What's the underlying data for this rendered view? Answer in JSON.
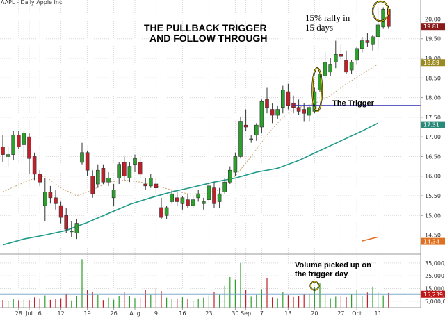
{
  "title": "AAPL - Daily  Apple Inc",
  "annotations": {
    "headline_1": "THE PULLBACK TRIGGER",
    "headline_2": "AND FOLLOW THROUGH",
    "rally_1": "15% rally in",
    "rally_2": "15 days",
    "trigger": "The Trigger",
    "volume_1": "Volume picked up on",
    "volume_2": "the trigger day"
  },
  "colors": {
    "up": "#2ca02c",
    "down": "#c0202a",
    "sma_long": "#1e9a8a",
    "sma_short": "#c8a878",
    "trigger_line": "#2b2bb0",
    "volume_avg": "#6f9ec0",
    "badge_price": "#8b1a1a",
    "badge_sma_short": "#9a8a20",
    "badge_sma_long": "#2a8a7a",
    "badge_extra": "#e07020",
    "badge_volume": "#c01818",
    "annotation_circle": "#e8d000"
  },
  "chart_data": {
    "type": "candlestick",
    "title": "AAPL - Daily  Apple Inc",
    "price_axis": {
      "ylim": [
        14.05,
        20.45
      ],
      "ticks": [
        14.5,
        15.0,
        15.5,
        16.0,
        16.5,
        17.0,
        17.5,
        18.0,
        18.5,
        19.0,
        19.5,
        20.0
      ],
      "tick_labels": [
        "14.50",
        "15.00",
        "15.50",
        "16.00",
        "16.50",
        "17.00",
        "17.50",
        "18.00",
        "18.50",
        "19.00",
        "19.50",
        "20.00"
      ]
    },
    "volume_axis": {
      "ylim": [
        0,
        42000000
      ],
      "ticks": [
        5000000,
        15000000,
        25000000,
        35000000
      ],
      "tick_labels": [
        "5,000,0",
        "15,000,0",
        "25,000,0",
        "35,000,"
      ]
    },
    "x_ticks": [
      {
        "index": 3,
        "label": "28"
      },
      {
        "index": 5,
        "label": "Jul"
      },
      {
        "index": 7,
        "label": "6"
      },
      {
        "index": 11,
        "label": "12"
      },
      {
        "index": 16,
        "label": "19"
      },
      {
        "index": 21,
        "label": "26"
      },
      {
        "index": 25,
        "label": "Aug"
      },
      {
        "index": 29,
        "label": "9"
      },
      {
        "index": 34,
        "label": "16"
      },
      {
        "index": 39,
        "label": "23"
      },
      {
        "index": 44,
        "label": "30"
      },
      {
        "index": 46,
        "label": "Sep"
      },
      {
        "index": 49,
        "label": "7"
      },
      {
        "index": 54,
        "label": "13"
      },
      {
        "index": 59,
        "label": "20"
      },
      {
        "index": 64,
        "label": "27"
      },
      {
        "index": 67,
        "label": "Oct"
      },
      {
        "index": 71,
        "label": "11"
      }
    ],
    "candles": [
      [
        16.75,
        17.05,
        16.35,
        16.55
      ],
      [
        16.5,
        16.75,
        16.25,
        16.55
      ],
      [
        16.55,
        17.15,
        16.4,
        17.05
      ],
      [
        17.05,
        17.15,
        16.7,
        16.75
      ],
      [
        16.8,
        17.15,
        16.5,
        17.1
      ],
      [
        17.0,
        17.1,
        16.05,
        16.45
      ],
      [
        16.5,
        16.6,
        15.9,
        16.05
      ],
      [
        16.05,
        16.15,
        15.75,
        15.85
      ],
      [
        15.25,
        15.95,
        14.85,
        15.6
      ],
      [
        15.6,
        15.75,
        15.3,
        15.45
      ],
      [
        15.45,
        15.65,
        15.15,
        15.3
      ],
      [
        15.25,
        15.35,
        14.8,
        14.95
      ],
      [
        15.0,
        15.2,
        14.55,
        14.65
      ],
      [
        14.6,
        14.85,
        14.45,
        14.6
      ],
      [
        14.55,
        14.9,
        14.4,
        14.8
      ],
      [
        16.35,
        16.85,
        16.3,
        16.6
      ],
      [
        16.6,
        16.65,
        16.0,
        16.15
      ],
      [
        16.0,
        16.15,
        15.45,
        15.55
      ],
      [
        15.8,
        16.3,
        15.7,
        16.15
      ],
      [
        16.2,
        16.3,
        15.8,
        15.85
      ],
      [
        15.85,
        16.1,
        15.75,
        15.95
      ],
      [
        15.45,
        15.8,
        15.25,
        15.65
      ],
      [
        15.95,
        16.35,
        15.8,
        16.3
      ],
      [
        16.35,
        16.5,
        15.9,
        16.0
      ],
      [
        15.95,
        16.35,
        15.85,
        16.25
      ],
      [
        16.3,
        16.55,
        16.1,
        16.45
      ],
      [
        16.35,
        16.5,
        15.95,
        16.05
      ],
      [
        15.8,
        15.95,
        15.65,
        15.75
      ],
      [
        15.75,
        16.05,
        15.7,
        15.95
      ],
      [
        15.8,
        15.95,
        15.55,
        15.7
      ],
      [
        15.2,
        15.45,
        14.9,
        14.95
      ],
      [
        15.0,
        15.25,
        14.9,
        15.2
      ],
      [
        15.35,
        15.65,
        15.3,
        15.55
      ],
      [
        15.45,
        15.6,
        15.25,
        15.35
      ],
      [
        15.3,
        15.5,
        15.15,
        15.45
      ],
      [
        15.4,
        15.55,
        15.2,
        15.25
      ],
      [
        15.25,
        15.5,
        15.2,
        15.4
      ],
      [
        15.45,
        15.65,
        15.35,
        15.55
      ],
      [
        15.3,
        15.45,
        15.15,
        15.35
      ],
      [
        15.4,
        15.85,
        15.35,
        15.75
      ],
      [
        15.7,
        15.85,
        15.2,
        15.3
      ],
      [
        15.35,
        15.7,
        15.2,
        15.55
      ],
      [
        15.6,
        15.95,
        15.55,
        15.85
      ],
      [
        15.85,
        16.25,
        15.8,
        16.15
      ],
      [
        16.1,
        16.6,
        16.0,
        16.5
      ],
      [
        16.5,
        17.5,
        16.45,
        17.4
      ],
      [
        17.3,
        17.7,
        17.15,
        17.25
      ],
      [
        16.95,
        17.05,
        16.85,
        16.95
      ],
      [
        17.05,
        17.35,
        16.9,
        17.3
      ],
      [
        17.25,
        17.95,
        17.1,
        17.9
      ],
      [
        17.95,
        18.25,
        17.6,
        17.75
      ],
      [
        17.7,
        17.85,
        17.35,
        17.55
      ],
      [
        17.55,
        17.8,
        17.45,
        17.7
      ],
      [
        17.75,
        18.3,
        17.6,
        18.2
      ],
      [
        18.15,
        18.35,
        17.7,
        17.8
      ],
      [
        17.85,
        18.05,
        17.6,
        17.75
      ],
      [
        17.75,
        17.95,
        17.55,
        17.65
      ],
      [
        17.7,
        17.85,
        17.4,
        17.6
      ],
      [
        17.55,
        17.8,
        17.4,
        17.75
      ],
      [
        17.65,
        18.25,
        17.6,
        18.15
      ],
      [
        18.2,
        18.65,
        18.15,
        18.6
      ],
      [
        18.55,
        19.15,
        18.5,
        18.9
      ],
      [
        18.65,
        19.0,
        18.55,
        18.85
      ],
      [
        18.9,
        19.45,
        18.75,
        19.1
      ],
      [
        19.1,
        19.35,
        18.95,
        19.05
      ],
      [
        18.95,
        19.2,
        18.6,
        18.65
      ],
      [
        18.7,
        18.95,
        18.6,
        18.9
      ],
      [
        18.95,
        19.3,
        18.85,
        19.25
      ],
      [
        19.25,
        19.55,
        19.15,
        19.45
      ],
      [
        19.45,
        19.65,
        19.3,
        19.4
      ],
      [
        19.35,
        19.6,
        19.2,
        19.55
      ],
      [
        19.55,
        20.3,
        19.25,
        19.85
      ],
      [
        19.8,
        20.3,
        19.75,
        20.25
      ],
      [
        20.25,
        20.35,
        19.75,
        19.81
      ]
    ],
    "volume": [
      6000000,
      5500000,
      7000000,
      5800000,
      6300000,
      5900000,
      8000000,
      7200000,
      9500000,
      6100000,
      6800000,
      7300000,
      11000000,
      5600000,
      8800000,
      38000000,
      14000000,
      12000000,
      9800000,
      5900000,
      7800000,
      6200000,
      9000000,
      12500000,
      8700000,
      7500000,
      7900000,
      14000000,
      9900000,
      15000000,
      13000000,
      7800000,
      6600000,
      7200000,
      8100000,
      6900000,
      5400000,
      6700000,
      7800000,
      9600000,
      12000000,
      10000000,
      17000000,
      24000000,
      22000000,
      35000000,
      14000000,
      8500000,
      10000000,
      14500000,
      23000000,
      8000000,
      7400000,
      12000000,
      9700000,
      8300000,
      9200000,
      10500000,
      11000000,
      16000000,
      19000000,
      11000000,
      7400000,
      8500000,
      9300000,
      8200000,
      10500000,
      14000000,
      9000000,
      11800000,
      16500000,
      12000000,
      9500000,
      11500000
    ],
    "volume_avg": 10500000,
    "volume_label": "15,239,0",
    "series": [
      {
        "name": "",
        "color": "#c8a878",
        "dash": true,
        "points": [
          [
            0,
            15.6
          ],
          [
            5,
            15.9
          ],
          [
            8,
            16.0
          ],
          [
            11,
            15.7
          ],
          [
            14,
            15.5
          ],
          [
            17,
            15.65
          ],
          [
            20,
            15.85
          ],
          [
            23,
            15.9
          ],
          [
            26,
            15.85
          ],
          [
            29,
            15.75
          ],
          [
            32,
            15.65
          ],
          [
            35,
            15.55
          ],
          [
            38,
            15.55
          ],
          [
            41,
            15.65
          ],
          [
            44,
            16.0
          ],
          [
            47,
            16.5
          ],
          [
            50,
            17.05
          ],
          [
            53,
            17.5
          ],
          [
            56,
            17.75
          ],
          [
            59,
            17.85
          ],
          [
            62,
            18.05
          ],
          [
            65,
            18.35
          ],
          [
            68,
            18.6
          ],
          [
            71,
            18.85
          ]
        ]
      },
      {
        "name": "",
        "color": "#1e9a8a",
        "dash": false,
        "points": [
          [
            0,
            14.25
          ],
          [
            4,
            14.4
          ],
          [
            8,
            14.5
          ],
          [
            12,
            14.62
          ],
          [
            16,
            14.82
          ],
          [
            20,
            15.05
          ],
          [
            24,
            15.28
          ],
          [
            28,
            15.45
          ],
          [
            32,
            15.6
          ],
          [
            36,
            15.72
          ],
          [
            40,
            15.85
          ],
          [
            44,
            15.95
          ],
          [
            48,
            16.1
          ],
          [
            52,
            16.2
          ],
          [
            56,
            16.4
          ],
          [
            60,
            16.65
          ],
          [
            64,
            16.9
          ],
          [
            68,
            17.15
          ],
          [
            71,
            17.35
          ]
        ]
      }
    ],
    "price_badges": [
      {
        "value": 19.81,
        "label": "19.81",
        "colorKey": "badge_price"
      },
      {
        "value": 18.89,
        "label": "18.89",
        "colorKey": "badge_sma_short"
      },
      {
        "value": 17.31,
        "label": "17.31",
        "colorKey": "badge_sma_long"
      },
      {
        "value": 14.34,
        "label": "14.34",
        "colorKey": "badge_extra"
      }
    ],
    "extra_segment": {
      "from": [
        68,
        14.35
      ],
      "to": [
        71,
        14.45
      ]
    },
    "trigger_level": 17.8,
    "trigger_start_index": 55,
    "circles": [
      {
        "index": 59.5,
        "value": 18.2,
        "rx": 0.9,
        "ry": 0.55
      },
      {
        "index": 71.5,
        "value": 20.2,
        "rx": 1.5,
        "ry": 0.25
      }
    ],
    "volume_circle_index": 59
  }
}
